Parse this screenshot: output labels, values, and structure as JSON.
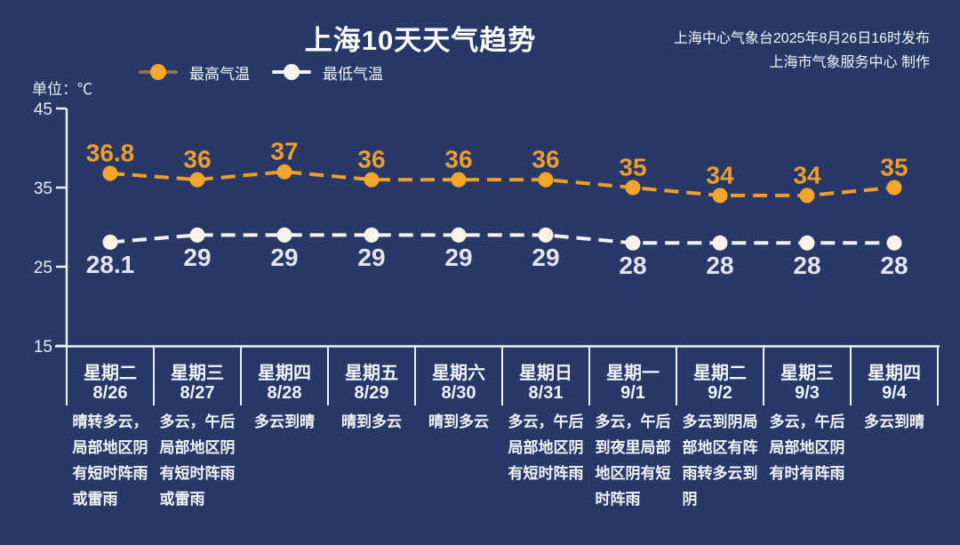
{
  "header": {
    "title": "上海10天天气趋势",
    "publisher_line1": "上海中心气象台2025年8月26日16时发布",
    "publisher_line2": "上海市气象服务中心 制作"
  },
  "unit_label": "单位：℃",
  "legend": [
    {
      "label": "最高气温",
      "dot_color": "#F4A62A",
      "line_color": "#8F714A"
    },
    {
      "label": "最低气温",
      "dot_color": "#F8F3E8",
      "line_color": "#F3F1F5"
    }
  ],
  "colors": {
    "background": "#283968",
    "axis": "#EDF0F6",
    "high_accent": "#F4A62A",
    "low_accent": "#F8F3E8"
  },
  "chart_data": {
    "type": "line",
    "title": "上海10天天气趋势",
    "xlabel": "",
    "ylabel": "℃",
    "ylim": [
      15,
      45
    ],
    "yticks": [
      45,
      35,
      25,
      15
    ],
    "grid": false,
    "legend_position": "top-left",
    "line_style": "dashed",
    "categories": [
      {
        "weekday": "星期二",
        "date": "8/26",
        "weather": "晴转多云，\n局部地区阴\n有短时阵雨\n或雷雨"
      },
      {
        "weekday": "星期三",
        "date": "8/27",
        "weather": "多云，午后\n局部地区阴\n有短时阵雨\n或雷雨"
      },
      {
        "weekday": "星期四",
        "date": "8/28",
        "weather": "多云到晴"
      },
      {
        "weekday": "星期五",
        "date": "8/29",
        "weather": "晴到多云"
      },
      {
        "weekday": "星期六",
        "date": "8/30",
        "weather": "晴到多云"
      },
      {
        "weekday": "星期日",
        "date": "8/31",
        "weather": "多云，午后\n局部地区阴\n有短时阵雨"
      },
      {
        "weekday": "星期一",
        "date": "9/1",
        "weather": "多云，午后\n到夜里局部\n地区阴有短\n时阵雨"
      },
      {
        "weekday": "星期二",
        "date": "9/2",
        "weather": "多云到阴局\n部地区有阵\n雨转多云到\n阴"
      },
      {
        "weekday": "星期三",
        "date": "9/3",
        "weather": "多云，午后\n局部地区阴\n有时有阵雨"
      },
      {
        "weekday": "星期四",
        "date": "9/4",
        "weather": "多云到晴"
      }
    ],
    "series": [
      {
        "name": "最高气温",
        "color": "#F4A62A",
        "line_color": "#ED9E2F",
        "label_color": "#EE9D2E",
        "values": [
          36.8,
          36,
          37,
          36,
          36,
          36,
          35,
          34,
          34,
          35
        ]
      },
      {
        "name": "最低气温",
        "color": "#F8F3E8",
        "line_color": "#F3F1F5",
        "label_color": "#E4E3EF",
        "values": [
          28.1,
          29,
          29,
          29,
          29,
          29,
          28,
          28,
          28,
          28
        ]
      }
    ]
  }
}
